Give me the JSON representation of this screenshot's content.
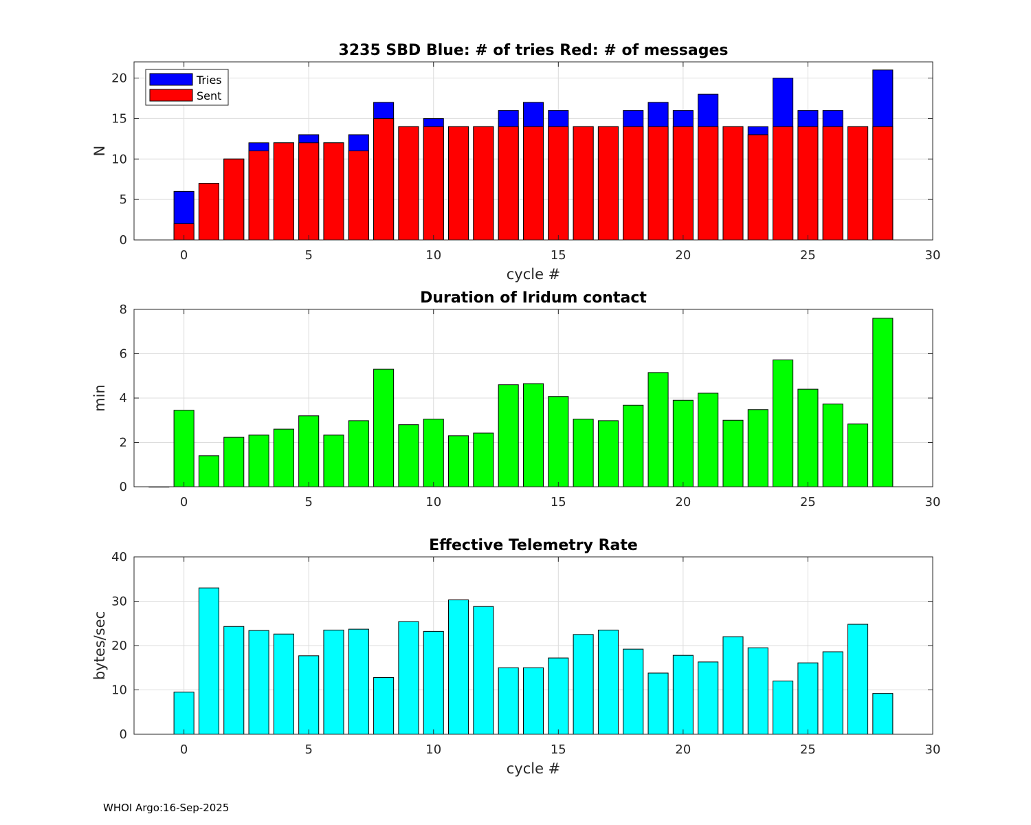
{
  "chart_data": [
    {
      "type": "bar",
      "stacked_overlay": true,
      "title": "3235 SBD  Blue: # of tries   Red: # of messages",
      "xlabel": "cycle #",
      "ylabel": "N",
      "xlim": [
        -2,
        30
      ],
      "ylim": [
        0,
        22
      ],
      "xticks": [
        0,
        5,
        10,
        15,
        20,
        25,
        30
      ],
      "yticks": [
        0,
        5,
        10,
        15,
        20
      ],
      "grid": true,
      "legend_position": "top-left",
      "x": [
        0,
        1,
        2,
        3,
        4,
        5,
        6,
        7,
        8,
        9,
        10,
        11,
        12,
        13,
        14,
        15,
        16,
        17,
        18,
        19,
        20,
        21,
        22,
        23,
        24,
        25,
        26,
        27,
        28
      ],
      "series": [
        {
          "name": "Tries",
          "color": "#0000ff",
          "values": [
            6,
            7,
            10,
            12,
            12,
            13,
            12,
            13,
            17,
            14,
            15,
            14,
            14,
            16,
            17,
            16,
            14,
            14,
            16,
            17,
            16,
            18,
            14,
            14,
            20,
            16,
            16,
            14,
            21
          ]
        },
        {
          "name": "Sent",
          "color": "#ff0000",
          "values": [
            2,
            7,
            10,
            11,
            12,
            12,
            12,
            11,
            15,
            14,
            14,
            14,
            14,
            14,
            14,
            14,
            14,
            14,
            14,
            14,
            14,
            14,
            14,
            13,
            14,
            14,
            14,
            14,
            14
          ]
        }
      ]
    },
    {
      "type": "bar",
      "title": "Duration of Iridum contact",
      "xlabel": "",
      "ylabel": "min",
      "xlim": [
        -2,
        30
      ],
      "ylim": [
        0,
        8
      ],
      "xticks": [
        0,
        5,
        10,
        15,
        20,
        25,
        30
      ],
      "yticks": [
        0,
        2,
        4,
        6,
        8
      ],
      "grid": true,
      "x": [
        -1,
        0,
        1,
        2,
        3,
        4,
        5,
        6,
        7,
        8,
        9,
        10,
        11,
        12,
        13,
        14,
        15,
        16,
        17,
        18,
        19,
        20,
        21,
        22,
        23,
        24,
        25,
        26,
        27,
        28
      ],
      "series": [
        {
          "name": "Duration",
          "color": "#00ff00",
          "values": [
            0,
            3.45,
            1.4,
            2.23,
            2.33,
            2.6,
            3.2,
            2.33,
            2.98,
            5.3,
            2.8,
            3.05,
            2.3,
            2.42,
            4.6,
            4.65,
            4.07,
            3.05,
            2.98,
            3.68,
            5.15,
            3.9,
            4.22,
            3.0,
            3.48,
            5.72,
            4.4,
            3.73,
            2.83,
            7.6
          ]
        }
      ]
    },
    {
      "type": "bar",
      "title": "Effective Telemetry Rate",
      "xlabel": "cycle #",
      "ylabel": "bytes/sec",
      "xlim": [
        -2,
        30
      ],
      "ylim": [
        0,
        40
      ],
      "xticks": [
        0,
        5,
        10,
        15,
        20,
        25,
        30
      ],
      "yticks": [
        0,
        10,
        20,
        30,
        40
      ],
      "grid": true,
      "x": [
        0,
        1,
        2,
        3,
        4,
        5,
        6,
        7,
        8,
        9,
        10,
        11,
        12,
        13,
        14,
        15,
        16,
        17,
        18,
        19,
        20,
        21,
        22,
        23,
        24,
        25,
        26,
        27,
        28
      ],
      "series": [
        {
          "name": "Rate",
          "color": "#00ffff",
          "values": [
            9.5,
            33,
            24.3,
            23.4,
            22.6,
            17.7,
            23.5,
            23.7,
            12.8,
            25.4,
            23.2,
            30.3,
            28.8,
            15,
            15,
            17.2,
            22.5,
            23.5,
            19.2,
            13.8,
            17.8,
            16.3,
            22,
            19.5,
            12,
            16.1,
            18.6,
            24.8,
            9.2
          ]
        }
      ]
    }
  ],
  "footer": "WHOI Argo:16-Sep-2025"
}
